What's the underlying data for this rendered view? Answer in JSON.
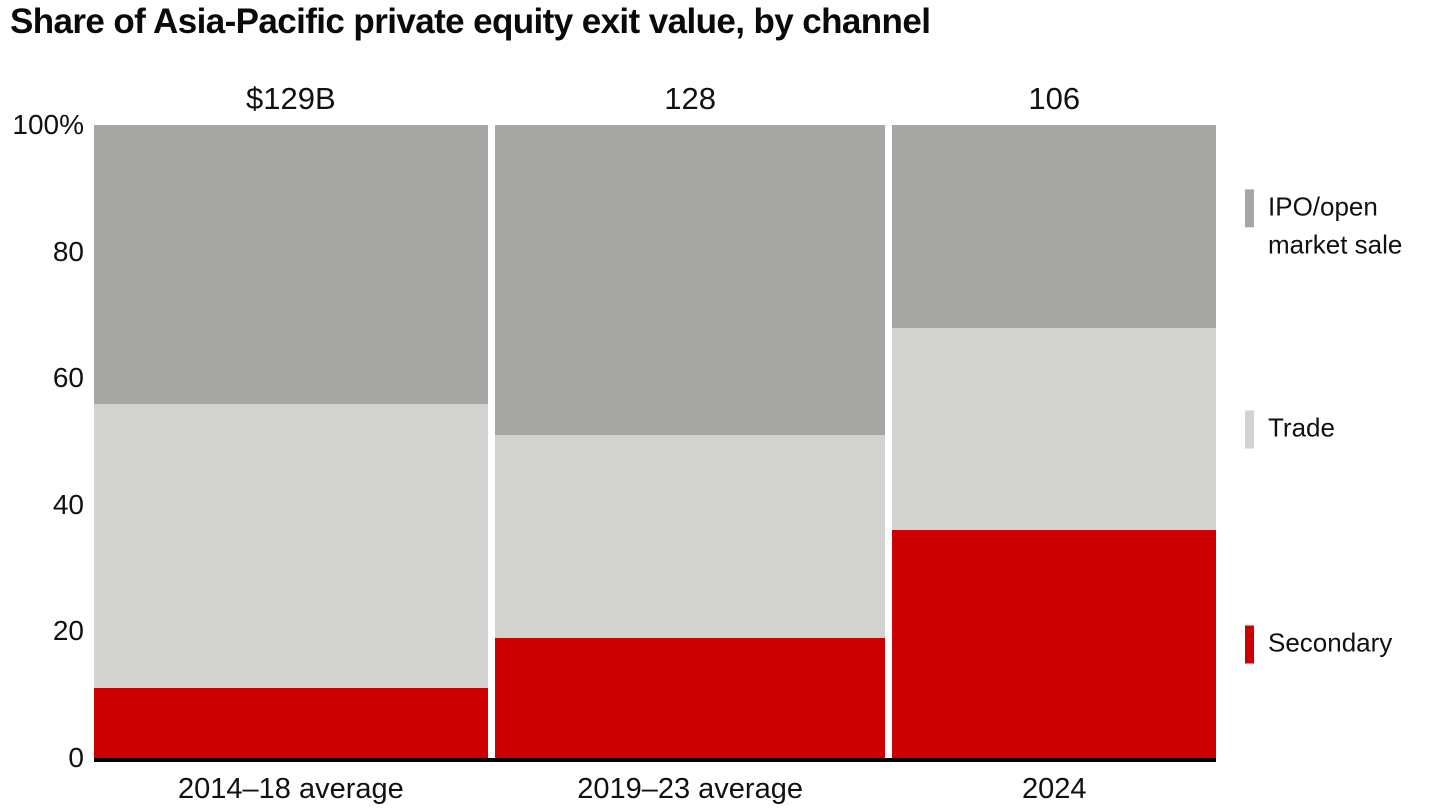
{
  "chart_data": {
    "type": "bar",
    "stacked": true,
    "percent_stacked": true,
    "bar_widths_proportional_to_totals": true,
    "title": "Share of Asia-Pacific private equity exit value, by channel",
    "categories": [
      "2014–18 average",
      "2019–23 average",
      "2024"
    ],
    "totals": [
      129,
      128,
      106
    ],
    "total_labels": [
      "$129B",
      "128",
      "106"
    ],
    "series": [
      {
        "name": "Secondary",
        "color": "#cc0000",
        "values": [
          11,
          19,
          36
        ]
      },
      {
        "name": "Trade",
        "color": "#d2d2d0",
        "values": [
          45,
          32,
          32
        ]
      },
      {
        "name": "IPO/open market sale",
        "color": "#a6a6a4",
        "values": [
          44,
          49,
          32
        ]
      }
    ],
    "xlabel": "",
    "ylabel": "",
    "ylim": [
      0,
      100
    ],
    "yticks": [
      {
        "value": 100,
        "label": "100%"
      },
      {
        "value": 80,
        "label": "80"
      },
      {
        "value": 60,
        "label": "60"
      },
      {
        "value": 40,
        "label": "40"
      },
      {
        "value": 20,
        "label": "20"
      },
      {
        "value": 0,
        "label": "0"
      }
    ],
    "grid": false,
    "legend_position": "right",
    "axis_line_color": "#000000",
    "background_color": "#ffffff"
  }
}
